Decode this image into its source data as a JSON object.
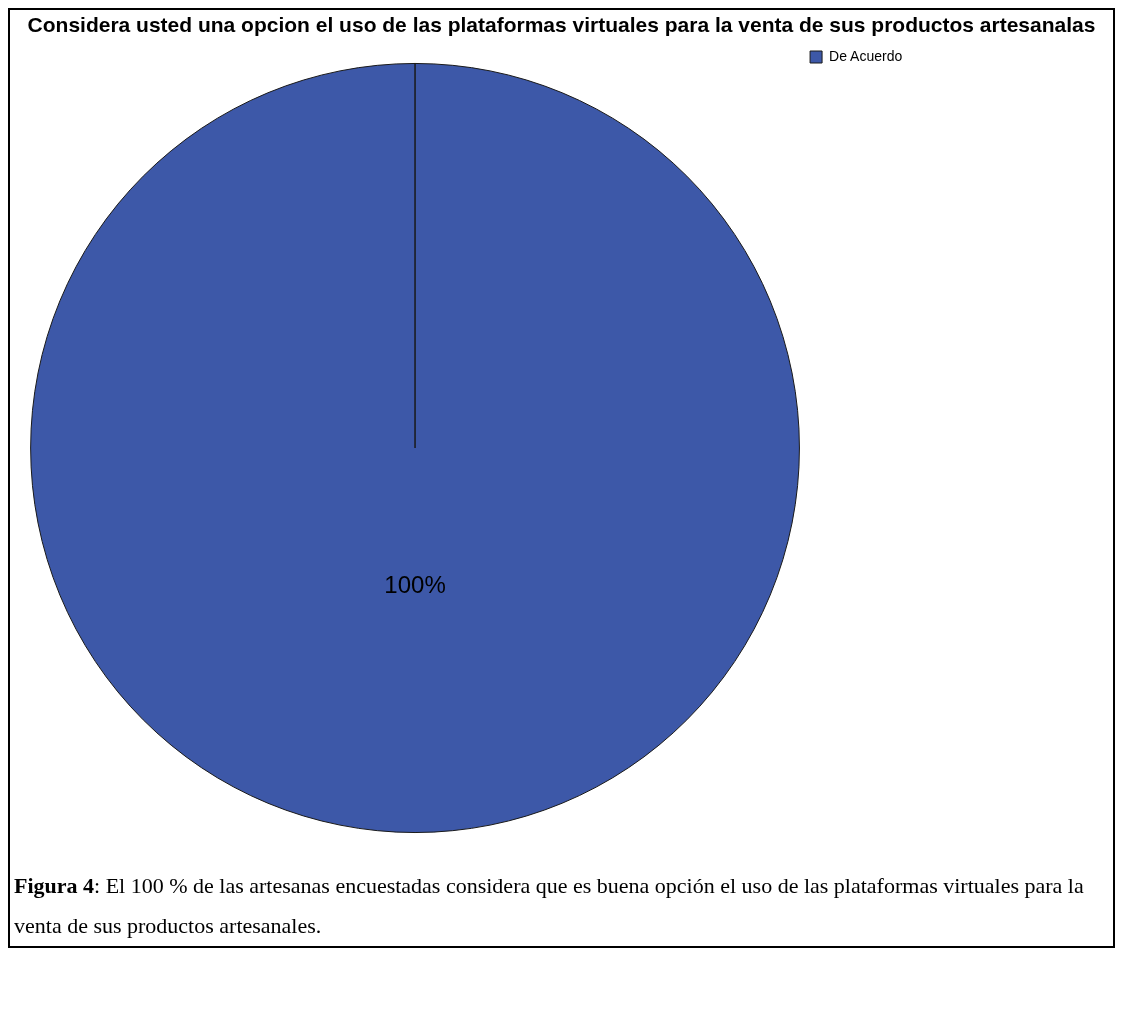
{
  "chart_data": {
    "type": "pie",
    "title": "Considera usted una opcion el uso de las plataformas virtuales para la venta de sus productos artesanalas",
    "categories": [
      "De Acuerdo"
    ],
    "values": [
      100
    ],
    "colors": [
      "#3d58a8"
    ],
    "value_labels": [
      "100%"
    ],
    "legend": "top right",
    "annotations": [
      "Figura 4: El 100 % de las artesanas encuestadas considera que es buena opción el uso de las plataformas virtuales para la venta de sus productos artesanales."
    ]
  }
}
